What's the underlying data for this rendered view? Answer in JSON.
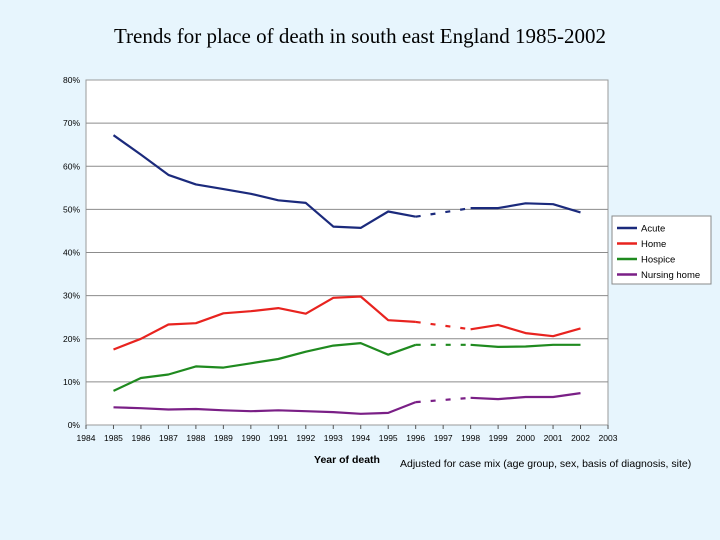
{
  "chart_data": {
    "type": "line",
    "title": "Trends for place of death in south east England 1985-2002",
    "xlabel": "Year of death",
    "ylabel": "",
    "note": "Adjusted for case mix (age group, sex, basis of diagnosis, site)",
    "x_ticks": [
      "1984",
      "1985",
      "1986",
      "1987",
      "1988",
      "1989",
      "1990",
      "1991",
      "1992",
      "1993",
      "1994",
      "1995",
      "1996",
      "1997",
      "1998",
      "1999",
      "2000",
      "2001",
      "2002",
      "2003"
    ],
    "y_ticks": [
      "0%",
      "10%",
      "20%",
      "30%",
      "40%",
      "50%",
      "60%",
      "70%",
      "80%"
    ],
    "xlim": [
      1984,
      2003
    ],
    "ylim": [
      0,
      80
    ],
    "grid": "horizontal",
    "legend_position": "right",
    "gap_years": [
      1996,
      1998
    ],
    "series": [
      {
        "name": "Acute",
        "color": "#1b2a7c",
        "x": [
          1985,
          1986,
          1987,
          1988,
          1989,
          1990,
          1991,
          1992,
          1993,
          1994,
          1995,
          1996,
          1998,
          1999,
          2000,
          2001,
          2002
        ],
        "values": [
          67.2,
          62.7,
          58.0,
          55.8,
          54.7,
          53.6,
          52.1,
          51.5,
          46.0,
          45.7,
          49.5,
          48.3,
          50.3,
          50.3,
          51.4,
          51.2,
          49.3
        ]
      },
      {
        "name": "Home",
        "color": "#e8231f",
        "x": [
          1985,
          1986,
          1987,
          1988,
          1989,
          1990,
          1991,
          1992,
          1993,
          1994,
          1995,
          1996,
          1998,
          1999,
          2000,
          2001,
          2002
        ],
        "values": [
          17.5,
          20.0,
          23.3,
          23.6,
          25.9,
          26.4,
          27.1,
          25.8,
          29.5,
          29.8,
          24.3,
          23.9,
          22.2,
          23.2,
          21.3,
          20.6,
          22.4
        ]
      },
      {
        "name": "Hospice",
        "color": "#1f8a1f",
        "x": [
          1985,
          1986,
          1987,
          1988,
          1989,
          1990,
          1991,
          1992,
          1993,
          1994,
          1995,
          1996,
          1998,
          1999,
          2000,
          2001,
          2002
        ],
        "values": [
          7.9,
          10.9,
          11.7,
          13.6,
          13.3,
          14.3,
          15.3,
          17.0,
          18.4,
          19.0,
          16.3,
          18.6,
          18.6,
          18.1,
          18.2,
          18.6,
          18.6
        ]
      },
      {
        "name": "Nursing home",
        "color": "#7a1f86",
        "x": [
          1985,
          1986,
          1987,
          1988,
          1989,
          1990,
          1991,
          1992,
          1993,
          1994,
          1995,
          1996,
          1998,
          1999,
          2000,
          2001,
          2002
        ],
        "values": [
          4.1,
          3.9,
          3.6,
          3.7,
          3.4,
          3.2,
          3.4,
          3.2,
          3.0,
          2.6,
          2.8,
          5.3,
          6.3,
          6.0,
          6.5,
          6.5,
          7.4
        ]
      }
    ]
  }
}
